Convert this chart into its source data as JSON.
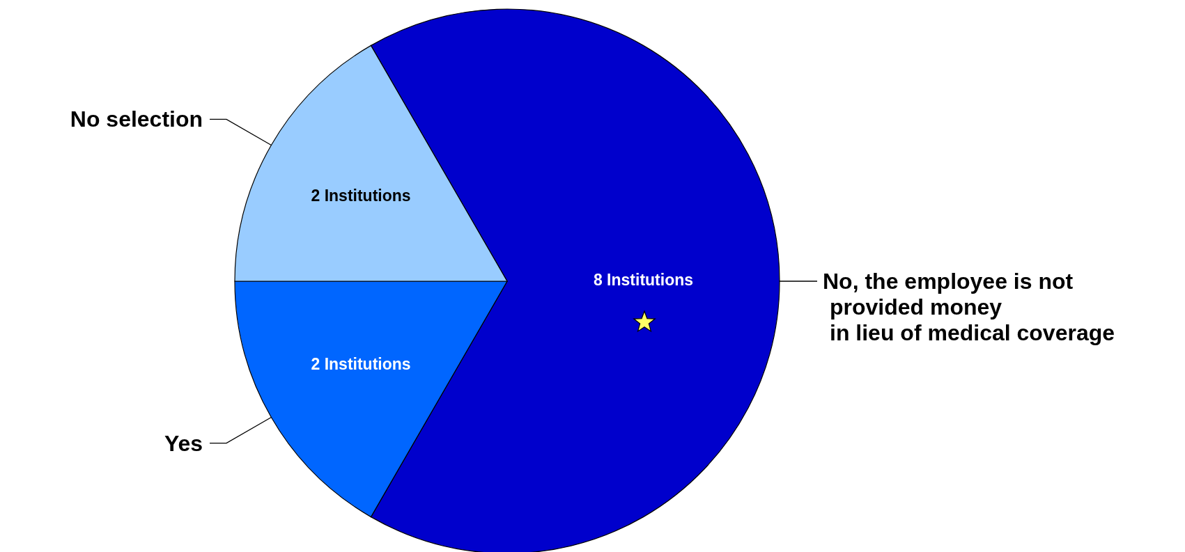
{
  "chart_data": {
    "type": "pie",
    "categories": [
      "No, the employee is not\nprovided money\nin lieu of medical coverage",
      "Yes",
      "No selection"
    ],
    "values": [
      8,
      2,
      2
    ],
    "colors": [
      "#0000cc",
      "#0066ff",
      "#99ccff"
    ],
    "value_labels": [
      "8 Institutions",
      "2 Institutions",
      "2 Institutions"
    ]
  }
}
